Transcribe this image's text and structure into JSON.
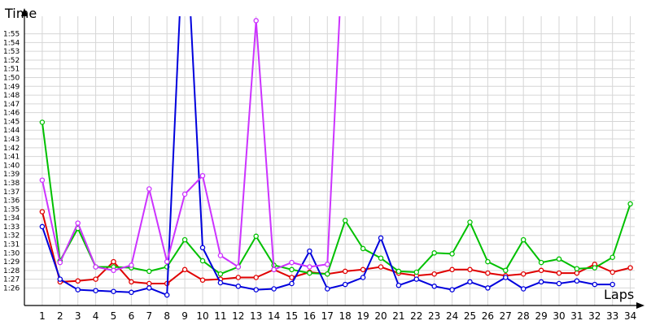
{
  "chart_data": {
    "type": "line",
    "title": "",
    "xlabel": "Laps",
    "ylabel": "Time",
    "x": [
      1,
      2,
      3,
      4,
      5,
      6,
      7,
      8,
      9,
      10,
      11,
      12,
      13,
      14,
      15,
      16,
      17,
      18,
      19,
      20,
      21,
      22,
      23,
      24,
      25,
      26,
      27,
      28,
      29,
      30,
      31,
      32,
      33,
      34
    ],
    "x_tick_labels": [
      "1",
      "2",
      "3",
      "4",
      "5",
      "6",
      "7",
      "8",
      "9",
      "10",
      "11",
      "12",
      "13",
      "14",
      "15",
      "16",
      "17",
      "18",
      "19",
      "20",
      "21",
      "22",
      "23",
      "24",
      "25",
      "26",
      "27",
      "28",
      "29",
      "30",
      "31",
      "32",
      "33",
      "34"
    ],
    "y_tick_labels": [
      "1:26",
      "1:27",
      "1:28",
      "1:29",
      "1:30",
      "1:31",
      "1:32",
      "1:33",
      "1:34",
      "1:35",
      "1:36",
      "1:37",
      "1:38",
      "1:39",
      "1:40",
      "1:41",
      "1:42",
      "1:43",
      "1:44",
      "1:45",
      "1:46",
      "1:47",
      "1:48",
      "1:49",
      "1:50",
      "1:51",
      "1:52",
      "1:53",
      "1:54",
      "1:55"
    ],
    "y_tick_values": [
      86,
      87,
      88,
      89,
      90,
      91,
      92,
      93,
      94,
      95,
      96,
      97,
      98,
      99,
      100,
      101,
      102,
      103,
      104,
      105,
      106,
      107,
      108,
      109,
      110,
      111,
      112,
      113,
      114,
      115
    ],
    "ylim": [
      84,
      117
    ],
    "xlim": [
      0,
      35
    ],
    "grid": true,
    "legend": "none",
    "series": [
      {
        "color": "#e00000",
        "values": [
          94.7,
          86.7,
          86.8,
          87.0,
          89.0,
          86.7,
          86.5,
          86.5,
          88.1,
          86.9,
          87.0,
          87.2,
          87.2,
          88.1,
          87.2,
          87.8,
          87.6,
          87.9,
          88.1,
          88.4,
          87.7,
          87.4,
          87.6,
          88.1,
          88.1,
          87.7,
          87.4,
          87.6,
          88.0,
          87.7,
          87.7,
          88.7,
          87.8,
          88.3
        ]
      },
      {
        "color": "#00c000",
        "values": [
          104.9,
          89.1,
          92.8,
          88.4,
          88.4,
          88.3,
          87.9,
          88.4,
          91.5,
          89.1,
          87.6,
          88.4,
          91.9,
          88.6,
          88.1,
          87.7,
          87.6,
          93.7,
          90.5,
          89.4,
          87.9,
          87.8,
          90.0,
          89.9,
          93.5,
          89.0,
          88.0,
          91.5,
          88.9,
          89.3,
          88.2,
          88.3,
          89.5,
          95.6
        ]
      },
      {
        "color": "#0000dd",
        "values": [
          93.0,
          87.0,
          85.8,
          85.7,
          85.6,
          85.5,
          86.0,
          85.2,
          130,
          90.6,
          86.6,
          86.2,
          85.8,
          85.9,
          86.5,
          90.2,
          85.9,
          86.4,
          87.2,
          91.7,
          86.3,
          87.0,
          86.2,
          85.8,
          86.7,
          86.0,
          87.2,
          85.9,
          86.7,
          86.5,
          86.8,
          86.4,
          86.4,
          null
        ]
      },
      {
        "color": "#cc33ff",
        "values": [
          98.3,
          88.9,
          93.4,
          88.4,
          88.0,
          88.6,
          97.3,
          89.0,
          96.7,
          98.8,
          89.7,
          88.4,
          116.5,
          88.1,
          88.9,
          88.4,
          88.7,
          130,
          null,
          null,
          null,
          null,
          null,
          null,
          null,
          null,
          null,
          null,
          null,
          null,
          null,
          null,
          null,
          null
        ]
      }
    ]
  }
}
